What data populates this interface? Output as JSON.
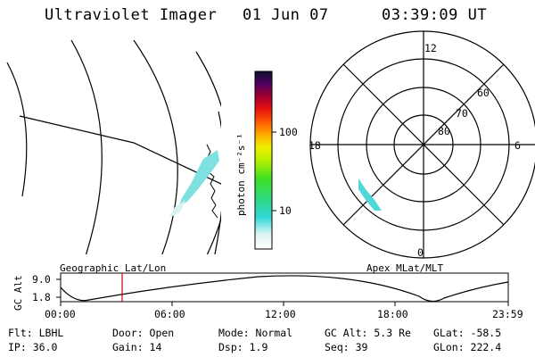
{
  "header": {
    "instrument": "Ultraviolet Imager",
    "date": "01 Jun 07",
    "time": "03:39:09 UT"
  },
  "colorbar": {
    "unit_label": "photon cm⁻²s⁻¹",
    "ticks": [
      "100",
      "10"
    ]
  },
  "polar_plot": {
    "mlt_labels": {
      "top": "12",
      "left": "18",
      "right": "6",
      "bottom": "0"
    },
    "lat_labels": [
      "60",
      "70",
      "80"
    ]
  },
  "timeline": {
    "ylabel": "GC Alt",
    "y_ticks": [
      "9.0",
      "1.8"
    ],
    "left_title": "Geographic Lat/Lon",
    "right_title": "Apex MLat/MLT",
    "x_ticks": [
      "00:00",
      "06:00",
      "12:00",
      "18:00",
      "23:59"
    ],
    "marker_color": "#cc0000"
  },
  "footer": {
    "filter": "Flt: LBHL",
    "ip": "IP: 36.0",
    "door": "Door: Open",
    "gain": "Gain: 14",
    "mode": "Mode: Normal",
    "dsp": "Dsp:    1.9",
    "gc_alt": "GC Alt: 5.3 Re",
    "seq": "Seq: 39",
    "glat": "GLat: -58.5",
    "glon": "GLon: 222.4"
  }
}
